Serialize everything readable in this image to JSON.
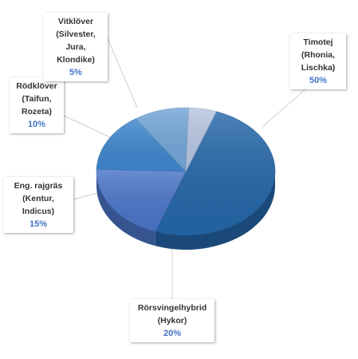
{
  "chart_data": {
    "type": "pie",
    "title": "",
    "style": "3d",
    "slices": [
      {
        "label": "Timotej\n(Rhonia,\nLischka)",
        "value": 50,
        "value_label": "50%",
        "color": "#2466a8"
      },
      {
        "label": "Rörsvingelhybrid\n(Hykor)",
        "value": 20,
        "value_label": "20%",
        "color": "#4a75c8"
      },
      {
        "label": "Eng. rajgräs\n(Kentur, Indicus)",
        "value": 15,
        "value_label": "15%",
        "color": "#3f86cf"
      },
      {
        "label": "Rödklöver\n(Taifun,\nRozeta)",
        "value": 10,
        "value_label": "10%",
        "color": "#73a6d8"
      },
      {
        "label": "Vitklöver\n(Silvester, Jura,\nKlondike)",
        "value": 5,
        "value_label": "5%",
        "color": "#b7c6e2"
      }
    ]
  }
}
